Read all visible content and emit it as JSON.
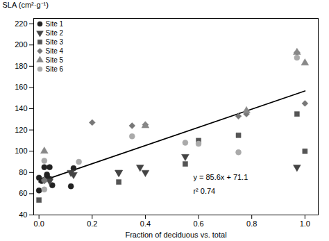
{
  "chart_data": {
    "type": "scatter",
    "xlabel": "Fraction of deciduous vs. total",
    "ylabel": "SLA (cm²·g⁻¹)",
    "xlim": [
      -0.02,
      1.05
    ],
    "ylim": [
      40,
      225
    ],
    "xticks": [
      {
        "value": 0.0,
        "label": "0.0"
      },
      0.2,
      0.4,
      0.6,
      0.8,
      {
        "value": 1.0,
        "label": "1.0"
      }
    ],
    "yticks": [
      40,
      60,
      80,
      100,
      120,
      140,
      160,
      180,
      200,
      220
    ],
    "legend": "upper left",
    "series": [
      {
        "type": "line",
        "color": "#000000",
        "x": [
          0.0,
          1.0
        ],
        "values": [
          71.1,
          156.7
        ]
      },
      {
        "name": "Site 1",
        "type": "scatter",
        "marker": "circle",
        "color": "#222222",
        "x": [
          0.0,
          0.0,
          0.01,
          0.02,
          0.02,
          0.03,
          0.03,
          0.04,
          0.04,
          0.05,
          0.12,
          0.13
        ],
        "values": [
          75,
          63,
          72,
          85,
          73,
          76,
          78,
          85,
          74,
          68,
          67,
          84
        ]
      },
      {
        "name": "Site 2",
        "type": "scatter",
        "marker": "triangle-down",
        "color": "#444444",
        "x": [
          0.04,
          0.12,
          0.13,
          0.3,
          0.3,
          0.38,
          0.4,
          0.55,
          0.97
        ],
        "values": [
          72,
          80,
          78,
          80,
          80,
          85,
          80,
          95,
          85
        ]
      },
      {
        "name": "Site 3",
        "type": "scatter",
        "marker": "square",
        "color": "#555555",
        "x": [
          0.0,
          0.3,
          0.55,
          0.6,
          0.75,
          0.97,
          1.0
        ],
        "values": [
          54,
          71,
          88,
          110,
          115,
          135,
          100
        ]
      },
      {
        "name": "Site 4",
        "type": "scatter",
        "marker": "diamond",
        "color": "#777777",
        "x": [
          0.02,
          0.02,
          0.2,
          0.35,
          0.4,
          0.75,
          0.78,
          0.97,
          1.0
        ],
        "values": [
          72,
          73,
          127,
          124,
          125,
          133,
          135,
          193,
          145
        ]
      },
      {
        "name": "Site 5",
        "type": "scatter",
        "marker": "triangle-up",
        "color": "#888888",
        "x": [
          0.02,
          0.4,
          0.78,
          0.97,
          1.0
        ],
        "values": [
          100,
          124,
          138,
          193,
          183
        ]
      },
      {
        "name": "Site 6",
        "type": "scatter",
        "marker": "circle",
        "color": "#aaaaaa",
        "x": [
          0.02,
          0.02,
          0.15,
          0.35,
          0.55,
          0.6,
          0.75,
          0.97
        ],
        "values": [
          91,
          64,
          90,
          114,
          108,
          107,
          99,
          188
        ]
      }
    ],
    "annotations": [
      {
        "text": "y = 85.6x + 71.1",
        "x": 0.58,
        "y": 73
      },
      {
        "text": "r² 0.74",
        "x": 0.58,
        "y": 60
      }
    ]
  }
}
